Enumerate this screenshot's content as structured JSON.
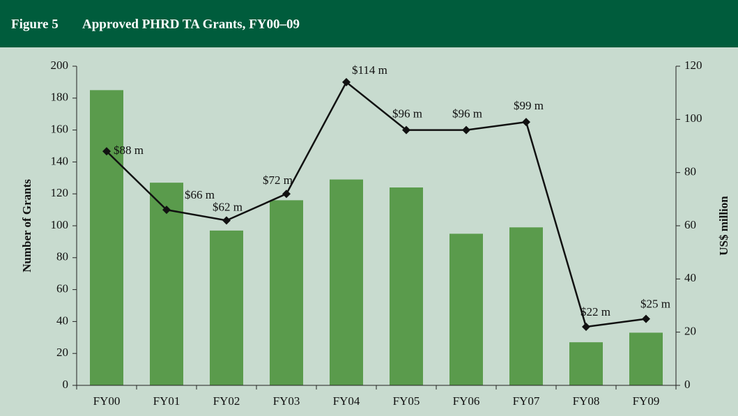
{
  "chart_data": {
    "type": "bar_line",
    "figure_label": "Figure 5",
    "title": "Approved PHRD TA Grants, FY00–09",
    "y_label": "Number of Grants",
    "y2_label": "US$ million",
    "categories": [
      "FY00",
      "FY01",
      "FY02",
      "FY03",
      "FY04",
      "FY05",
      "FY06",
      "FY07",
      "FY08",
      "FY09"
    ],
    "series": [
      {
        "name": "Number of Grants",
        "type": "bar",
        "color": "#5a9b4c",
        "values": [
          185,
          127,
          97,
          116,
          129,
          124,
          95,
          99,
          27,
          33
        ]
      },
      {
        "name": "US$ million",
        "type": "line",
        "axis": "y2",
        "color": "#111111",
        "values": [
          88,
          66,
          62,
          72,
          114,
          96,
          96,
          99,
          22,
          25
        ],
        "value_labels": [
          "$88 m",
          "$66 m",
          "$62 m",
          "$72 m",
          "$114 m",
          "$96 m",
          "$96 m",
          "$99 m",
          "$22 m",
          "$25 m"
        ]
      }
    ],
    "ylim": [
      0,
      200
    ],
    "yticks": [
      0,
      20,
      40,
      60,
      80,
      100,
      120,
      140,
      160,
      180,
      200
    ],
    "y2lim": [
      0,
      120
    ],
    "y2ticks": [
      0,
      20,
      40,
      60,
      80,
      100,
      120
    ],
    "grid": false
  }
}
